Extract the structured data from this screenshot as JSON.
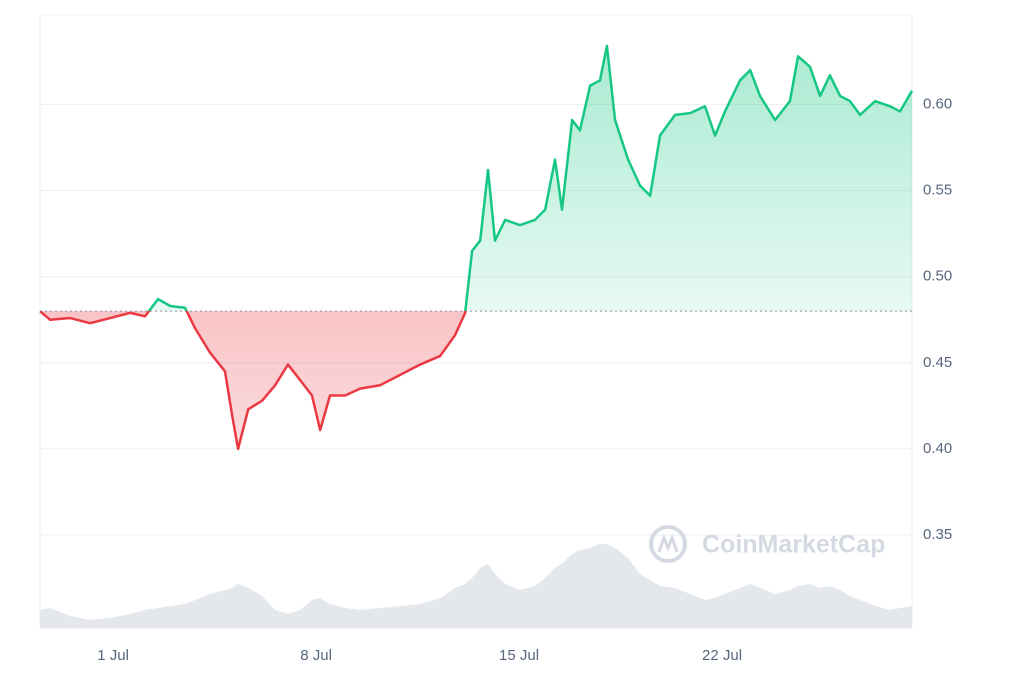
{
  "chart_data": {
    "type": "line",
    "watermark": "CoinMarketCap",
    "x": [
      -1.52,
      -1.17,
      -0.48,
      0.21,
      0.9,
      1.59,
      2.1,
      2.55,
      2.97,
      3.48,
      3.83,
      4.34,
      4.86,
      5.1,
      5.31,
      5.66,
      6.14,
      6.59,
      7.03,
      7.45,
      7.86,
      8.14,
      8.48,
      9.0,
      9.52,
      10.21,
      10.9,
      11.59,
      12.28,
      12.79,
      13.14,
      13.38,
      13.66,
      13.93,
      14.17,
      14.52,
      15.03,
      15.55,
      15.9,
      16.24,
      16.48,
      16.83,
      17.1,
      17.45,
      17.79,
      18.03,
      18.31,
      18.76,
      19.17,
      19.52,
      19.86,
      20.38,
      20.9,
      21.41,
      21.76,
      22.1,
      22.62,
      22.97,
      23.31,
      23.83,
      24.34,
      24.62,
      25.03,
      25.38,
      25.72,
      26.07,
      26.41,
      26.76,
      27.28,
      27.79,
      28.14,
      28.55
    ],
    "series": [
      {
        "name": "Price",
        "color_up": "#16c784",
        "color_down": "#ea3943",
        "values": [
          0.48,
          0.475,
          0.476,
          0.473,
          0.476,
          0.479,
          0.477,
          0.487,
          0.483,
          0.482,
          0.47,
          0.456,
          0.445,
          0.42,
          0.4,
          0.423,
          0.428,
          0.437,
          0.449,
          0.44,
          0.431,
          0.411,
          0.431,
          0.431,
          0.435,
          0.437,
          0.443,
          0.449,
          0.454,
          0.466,
          0.479,
          0.515,
          0.521,
          0.562,
          0.521,
          0.533,
          0.53,
          0.533,
          0.539,
          0.568,
          0.539,
          0.591,
          0.585,
          0.611,
          0.614,
          0.634,
          0.591,
          0.568,
          0.553,
          0.547,
          0.582,
          0.594,
          0.595,
          0.599,
          0.582,
          0.596,
          0.614,
          0.62,
          0.605,
          0.591,
          0.602,
          0.628,
          0.622,
          0.605,
          0.617,
          0.605,
          0.602,
          0.594,
          0.602,
          0.599,
          0.596,
          0.608
        ]
      },
      {
        "name": "Volume",
        "color": "#e4e7ec",
        "axis": "volume",
        "values": [
          9,
          10,
          6,
          4,
          5,
          7,
          9,
          10,
          11,
          12,
          14,
          17,
          19,
          20,
          22,
          20,
          16,
          9,
          7,
          9,
          14,
          15,
          12,
          10,
          9,
          10,
          11,
          12,
          15,
          20,
          22,
          25,
          30,
          32,
          27,
          22,
          19,
          21,
          25,
          30,
          32,
          37,
          39,
          40,
          42,
          42,
          40,
          35,
          27,
          24,
          21,
          20,
          17,
          14,
          15,
          17,
          20,
          22,
          20,
          17,
          19,
          21,
          22,
          20,
          21,
          19,
          16,
          14,
          11,
          9,
          10,
          11
        ]
      }
    ],
    "baseline": 0.48,
    "xlim": [
      -1.52,
      28.55
    ],
    "xticks": [
      {
        "value": 1,
        "label": "1 Jul"
      },
      {
        "value": 8,
        "label": "8 Jul"
      },
      {
        "value": 15,
        "label": "15 Jul"
      },
      {
        "value": 22,
        "label": "22 Jul"
      }
    ],
    "ylim": [
      0.296,
      0.652
    ],
    "yticks": [
      0.35,
      {
        "value": 0.4,
        "label": "0.40"
      },
      0.45,
      {
        "value": 0.5,
        "label": "0.50"
      },
      0.55,
      {
        "value": 0.6,
        "label": "0.60"
      }
    ],
    "volume_lim": [
      0,
      100
    ],
    "grid": true
  }
}
